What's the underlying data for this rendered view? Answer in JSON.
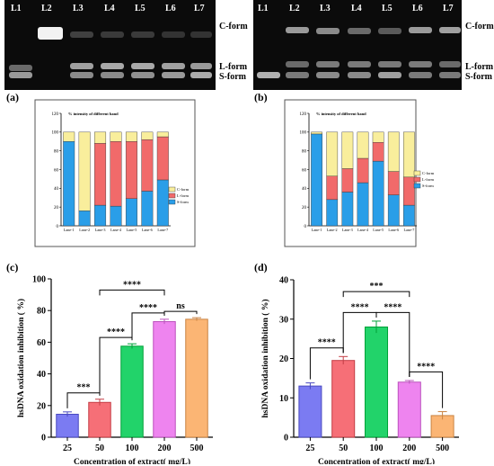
{
  "gels": {
    "left": {
      "lanes": [
        "L1",
        "L2",
        "L3",
        "L4",
        "L5",
        "L6",
        "L7"
      ],
      "bands": {
        "c_form": "C-form",
        "l_form": "L-form",
        "s_form": "S-form"
      }
    },
    "right": {
      "lanes": [
        "L1",
        "L2",
        "L3",
        "L4",
        "L5",
        "L6",
        "L7"
      ],
      "bands": {
        "c_form": "C-form",
        "l_form": "L-form",
        "s_form": "S-form"
      }
    }
  },
  "panels": {
    "a": "(a)",
    "b": "(b)",
    "c": "(c)",
    "d": "(d)"
  },
  "colors": {
    "c_form": "#f9ee9c",
    "l_form": "#f16a6a",
    "s_form": "#2a9ee8"
  },
  "chart_data": [
    {
      "id": "a",
      "type": "bar",
      "stacked": true,
      "title": "% intensity of different band",
      "categories": [
        "Lane-1",
        "Lane-2",
        "Lane-3",
        "Lane-4",
        "Lane-5",
        "Lane-6",
        "Lane-7"
      ],
      "series": [
        {
          "name": "S-form",
          "color": "#2a9ee8",
          "values": [
            90,
            16,
            22,
            21,
            29,
            37,
            49
          ]
        },
        {
          "name": "L-form",
          "color": "#f16a6a",
          "values": [
            0,
            0,
            66,
            69,
            61,
            55,
            46
          ]
        },
        {
          "name": "C-form",
          "color": "#f9ee9c",
          "values": [
            10,
            84,
            12,
            10,
            10,
            8,
            5
          ]
        }
      ],
      "ylim": [
        0,
        120
      ],
      "yticks": [
        0,
        20,
        40,
        60,
        80,
        100,
        120
      ],
      "legend": "right"
    },
    {
      "id": "b",
      "type": "bar",
      "stacked": true,
      "title": "% intensity of different band",
      "categories": [
        "Lane-1",
        "Lane-2",
        "Lane-3",
        "Lane-4",
        "Lane-5",
        "Lane-6",
        "Lane-7"
      ],
      "series": [
        {
          "name": "S-form",
          "color": "#2a9ee8",
          "values": [
            98,
            28,
            36,
            46,
            69,
            33,
            22
          ]
        },
        {
          "name": "L-form",
          "color": "#f16a6a",
          "values": [
            0,
            25,
            25,
            26,
            20,
            25,
            30
          ]
        },
        {
          "name": "C-form",
          "color": "#f9ee9c",
          "values": [
            2,
            47,
            39,
            28,
            11,
            42,
            48
          ]
        }
      ],
      "ylim": [
        0,
        120
      ],
      "yticks": [
        0,
        20,
        40,
        60,
        80,
        100,
        120
      ],
      "legend": "right"
    },
    {
      "id": "c",
      "type": "bar",
      "categories": [
        "25",
        "50",
        "100",
        "200",
        "500"
      ],
      "values": [
        14.5,
        22,
        57.5,
        73,
        74.5
      ],
      "errors": [
        1.5,
        2,
        1.5,
        1.5,
        1
      ],
      "colors": [
        "#7b7bf2",
        "#f66f77",
        "#22d36a",
        "#ee84ef",
        "#fbb574"
      ],
      "xlabel": "Concentration of extract( mg/L)",
      "ylabel": "hsDNA oxidation inhibition ( %)",
      "ylim": [
        0,
        100
      ],
      "yticks": [
        0,
        20,
        40,
        60,
        80,
        100
      ],
      "significance": [
        {
          "from": "25",
          "to": "50",
          "label": "***"
        },
        {
          "from": "50",
          "to": "100",
          "label": "****"
        },
        {
          "from": "100",
          "to": "200",
          "label": "****"
        },
        {
          "from": "200",
          "to": "500",
          "label": "ns"
        },
        {
          "from": "50",
          "to": "200",
          "label": "****"
        }
      ]
    },
    {
      "id": "d",
      "type": "bar",
      "categories": [
        "25",
        "50",
        "100",
        "200",
        "500"
      ],
      "values": [
        13,
        19.5,
        28,
        14,
        5.5
      ],
      "errors": [
        0.8,
        1,
        1.5,
        0.4,
        1
      ],
      "colors": [
        "#7b7bf2",
        "#f66f77",
        "#22d36a",
        "#ee84ef",
        "#fbb574"
      ],
      "xlabel": "Concentration of extract( mg/L)",
      "ylabel": "hsDNA oxidation inhibition ( %)",
      "ylim": [
        0,
        40
      ],
      "yticks": [
        0,
        10,
        20,
        30,
        40
      ],
      "significance": [
        {
          "from": "25",
          "to": "50",
          "label": "****"
        },
        {
          "from": "50",
          "to": "100",
          "label": "****"
        },
        {
          "from": "100",
          "to": "200",
          "label": "****"
        },
        {
          "from": "200",
          "to": "500",
          "label": "****"
        },
        {
          "from": "50",
          "to": "200",
          "label": "***"
        }
      ]
    }
  ]
}
